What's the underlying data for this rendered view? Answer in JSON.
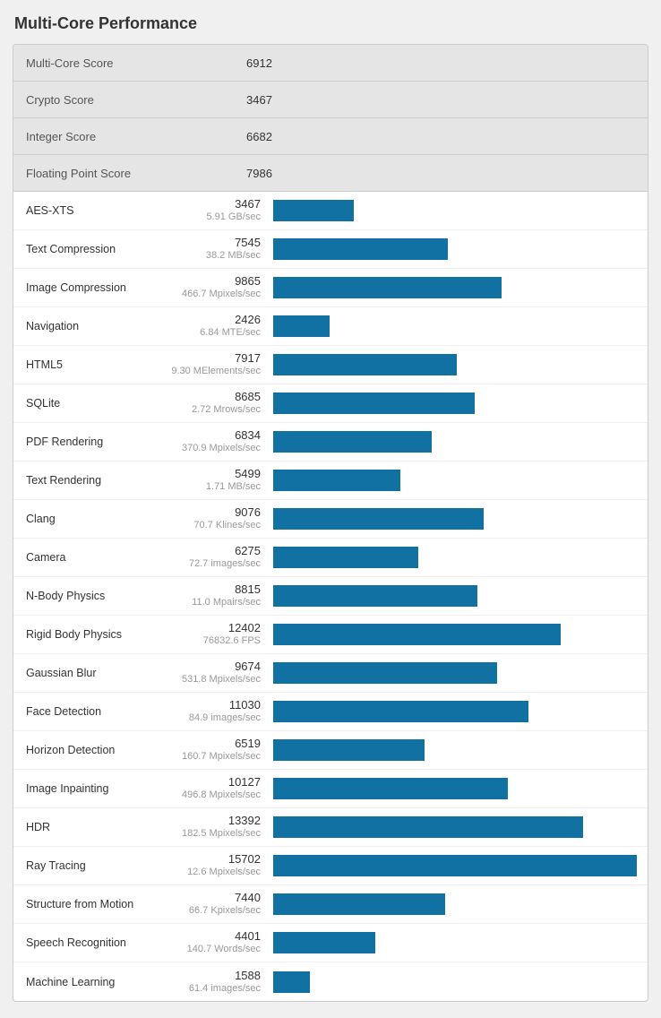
{
  "title": "Multi-Core Performance",
  "colors": {
    "bar": "#1171a3",
    "summary_bg": "#e5e5e5",
    "panel_border": "#cccccc",
    "page_bg": "#f0f0f0",
    "text": "#333333",
    "subtext": "#999999"
  },
  "bar_max_score": 15702,
  "summary": [
    {
      "label": "Multi-Core Score",
      "value": "6912"
    },
    {
      "label": "Crypto Score",
      "value": "3467"
    },
    {
      "label": "Integer Score",
      "value": "6682"
    },
    {
      "label": "Floating Point Score",
      "value": "7986"
    }
  ],
  "benchmarks": [
    {
      "label": "AES-XTS",
      "score": 3467,
      "unit": "5.91 GB/sec"
    },
    {
      "label": "Text Compression",
      "score": 7545,
      "unit": "38.2 MB/sec"
    },
    {
      "label": "Image Compression",
      "score": 9865,
      "unit": "466.7 Mpixels/sec"
    },
    {
      "label": "Navigation",
      "score": 2426,
      "unit": "6.84 MTE/sec"
    },
    {
      "label": "HTML5",
      "score": 7917,
      "unit": "9.30 MElements/sec"
    },
    {
      "label": "SQLite",
      "score": 8685,
      "unit": "2.72 Mrows/sec"
    },
    {
      "label": "PDF Rendering",
      "score": 6834,
      "unit": "370.9 Mpixels/sec"
    },
    {
      "label": "Text Rendering",
      "score": 5499,
      "unit": "1.71 MB/sec"
    },
    {
      "label": "Clang",
      "score": 9076,
      "unit": "70.7 Klines/sec"
    },
    {
      "label": "Camera",
      "score": 6275,
      "unit": "72.7 images/sec"
    },
    {
      "label": "N-Body Physics",
      "score": 8815,
      "unit": "11.0 Mpairs/sec"
    },
    {
      "label": "Rigid Body Physics",
      "score": 12402,
      "unit": "76832.6 FPS"
    },
    {
      "label": "Gaussian Blur",
      "score": 9674,
      "unit": "531.8 Mpixels/sec"
    },
    {
      "label": "Face Detection",
      "score": 11030,
      "unit": "84.9 images/sec"
    },
    {
      "label": "Horizon Detection",
      "score": 6519,
      "unit": "160.7 Mpixels/sec"
    },
    {
      "label": "Image Inpainting",
      "score": 10127,
      "unit": "496.8 Mpixels/sec"
    },
    {
      "label": "HDR",
      "score": 13392,
      "unit": "182.5 Mpixels/sec"
    },
    {
      "label": "Ray Tracing",
      "score": 15702,
      "unit": "12.6 Mpixels/sec"
    },
    {
      "label": "Structure from Motion",
      "score": 7440,
      "unit": "66.7 Kpixels/sec"
    },
    {
      "label": "Speech Recognition",
      "score": 4401,
      "unit": "140.7 Words/sec"
    },
    {
      "label": "Machine Learning",
      "score": 1588,
      "unit": "61.4 images/sec"
    }
  ]
}
